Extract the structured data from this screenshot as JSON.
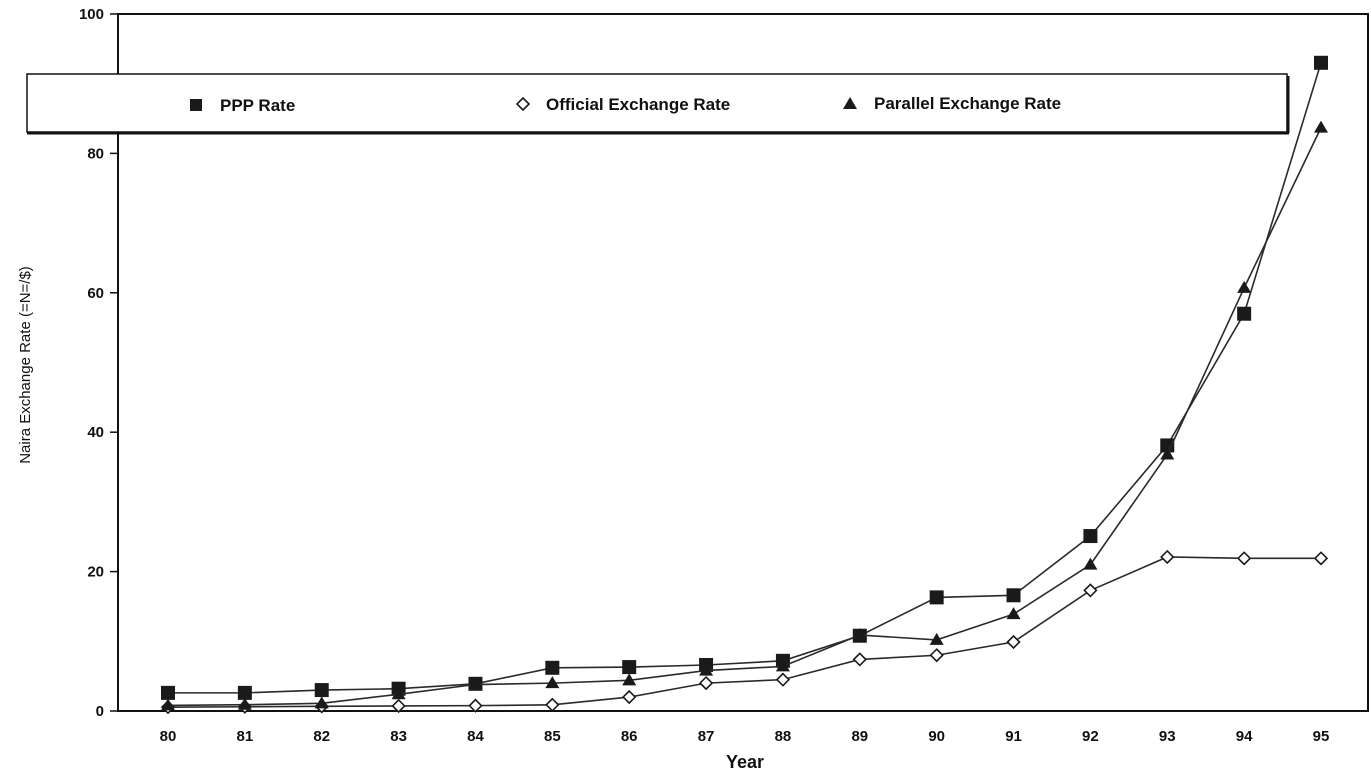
{
  "chart_data": {
    "type": "line",
    "title": "",
    "xlabel": "Year",
    "ylabel": "Naira Exchange Rate (=N=/$)",
    "categories": [
      "80",
      "81",
      "82",
      "83",
      "84",
      "85",
      "86",
      "87",
      "88",
      "89",
      "90",
      "91",
      "92",
      "93",
      "94",
      "95"
    ],
    "ylim": [
      0,
      100
    ],
    "yticks": [
      0,
      20,
      40,
      60,
      80,
      100
    ],
    "grid": false,
    "legend_position": "top",
    "series": [
      {
        "name": "PPP Rate",
        "marker": "square-filled",
        "values": [
          2.6,
          2.6,
          3.0,
          3.2,
          3.9,
          6.2,
          6.3,
          6.6,
          7.2,
          10.8,
          16.3,
          16.6,
          25.1,
          38.1,
          57.0,
          93.0
        ]
      },
      {
        "name": "Official Exchange Rate",
        "marker": "diamond-open",
        "values": [
          0.55,
          0.61,
          0.67,
          0.72,
          0.77,
          0.89,
          2.0,
          4.0,
          4.5,
          7.4,
          8.0,
          9.9,
          17.3,
          22.1,
          21.9,
          21.9
        ]
      },
      {
        "name": "Parallel Exchange Rate",
        "marker": "triangle-filled",
        "values": [
          0.8,
          0.9,
          1.1,
          2.4,
          3.8,
          4.0,
          4.4,
          5.8,
          6.4,
          10.9,
          10.2,
          13.9,
          21.0,
          36.8,
          60.7,
          83.7
        ]
      }
    ],
    "colors": {
      "line": "#2a2a2a",
      "marker": "#1a1a1a",
      "axis": "#111111"
    }
  }
}
